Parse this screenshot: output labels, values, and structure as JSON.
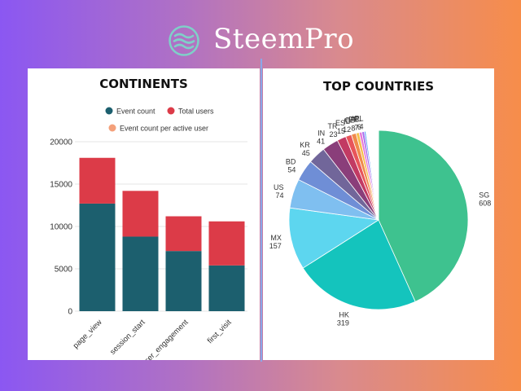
{
  "brand": {
    "name": "SteemPro",
    "logo_icon": "wave-logo-icon",
    "logo_color": "#7fd0c8"
  },
  "colors": {
    "event_count": "#1c5f6e",
    "total_users": "#dc3b48",
    "event_count_per_active_user": "#f4a07a"
  },
  "chart_data": [
    {
      "type": "bar",
      "stacked": true,
      "title": "CONTINENTS",
      "legend": [
        {
          "name": "Event count",
          "color": "#1c5f6e"
        },
        {
          "name": "Total users",
          "color": "#dc3b48"
        },
        {
          "name": "Event count per active user",
          "color": "#f4a07a"
        }
      ],
      "categories": [
        "page_view",
        "session_start",
        "user_engagement",
        "first_visit"
      ],
      "series": [
        {
          "name": "Event count",
          "values": [
            12700,
            8800,
            7100,
            5400
          ]
        },
        {
          "name": "Total users",
          "values": [
            5400,
            5400,
            4100,
            5200
          ]
        }
      ],
      "ylim": [
        0,
        20000
      ],
      "yticks": [
        0,
        5000,
        10000,
        15000,
        20000
      ],
      "xlabel": "",
      "ylabel": "",
      "grid": true
    },
    {
      "type": "pie",
      "title": "TOP COUNTRIES",
      "slices": [
        {
          "label": "SG",
          "value": 608,
          "color": "#3ec28f"
        },
        {
          "label": "HK",
          "value": 319,
          "color": "#14c4bd"
        },
        {
          "label": "MX",
          "value": 157,
          "color": "#5dd6ef"
        },
        {
          "label": "US",
          "value": 74,
          "color": "#7fbff0"
        },
        {
          "label": "BD",
          "value": 54,
          "color": "#6f8ed6"
        },
        {
          "label": "KR",
          "value": 45,
          "color": "#71669a"
        },
        {
          "label": "IN",
          "value": 41,
          "color": "#8a3e7a"
        },
        {
          "label": "TR",
          "value": 23,
          "color": "#c23a63"
        },
        {
          "label": "ES",
          "value": 15,
          "color": "#e8555a"
        },
        {
          "label": "ID",
          "value": 12,
          "color": "#f08a4c"
        },
        {
          "label": "GB",
          "value": 8,
          "color": "#f5c04c"
        },
        {
          "label": "PE",
          "value": 7,
          "color": "#e87bd6"
        },
        {
          "label": "NL",
          "value": 6,
          "color": "#a66cf0"
        },
        {
          "label": "PL",
          "value": 4,
          "color": "#5aa0f2"
        }
      ],
      "tail_slice_colors": [
        "#e04fc7",
        "#7a55e6",
        "#3e8cf2",
        "#24c7e8",
        "#2fd09a",
        "#8ad84a",
        "#e6d23c",
        "#f29b3a",
        "#f05a5a",
        "#e93c8c",
        "#b03ce0",
        "#5b64ec",
        "#29a9e8",
        "#2ccfc4",
        "#6fcf6a",
        "#c7d44a",
        "#f2b441",
        "#ef7c4a",
        "#e84c74",
        "#c04fd0",
        "#7f6fe8",
        "#4f9af0",
        "#3cc9d8",
        "#54c98a",
        "#a8cf52",
        "#e4c24a",
        "#ec8e52",
        "#e65b7c",
        "#bb5fcf",
        "#8a79e2",
        "#9aa6b4",
        "#b8c0cc"
      ]
    }
  ]
}
